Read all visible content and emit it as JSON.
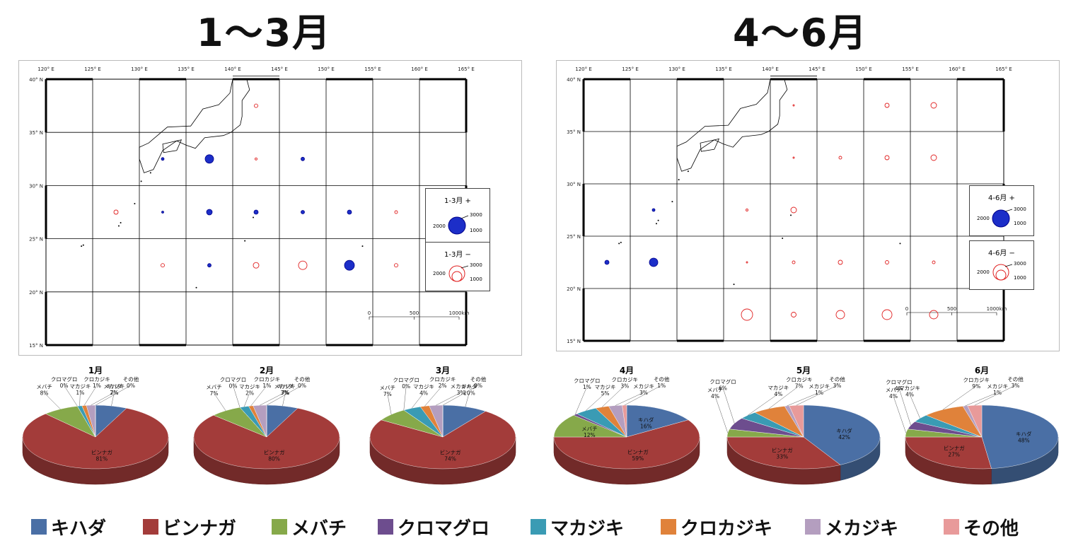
{
  "titles": {
    "left": "1～3月",
    "right": "4～6月"
  },
  "map": {
    "lon_ticks": [
      "120° E",
      "125° E",
      "130° E",
      "135° E",
      "140° E",
      "145° E",
      "150° E",
      "155° E",
      "160° E",
      "165° E"
    ],
    "lat_ticks": [
      "40° N",
      "35° N",
      "30° N",
      "25° N",
      "20° N",
      "15° N"
    ],
    "scale_ticks": [
      "0",
      "500",
      "1000km"
    ]
  },
  "map_left": {
    "legend_pos": {
      "title": "1-3月 +",
      "v_big": "3000",
      "v_mid": "2000",
      "v_small": "1000"
    },
    "legend_neg": {
      "title": "1-3月 −",
      "v_big": "3000",
      "v_mid": "2000",
      "v_small": "1000"
    }
  },
  "map_right": {
    "legend_pos": {
      "title": "4-6月 +",
      "v_big": "3000",
      "v_mid": "2000",
      "v_small": "1000"
    },
    "legend_neg": {
      "title": "4-6月 −",
      "v_big": "3000",
      "v_mid": "2000",
      "v_small": "1000"
    }
  },
  "colors": {
    "キハダ": "#4a6fa5",
    "ビンナガ": "#a33c3a",
    "メバチ": "#86a94a",
    "クロマグロ": "#6d4d8e",
    "マカジキ": "#3a9bb4",
    "クロカジキ": "#e0823a",
    "メカジキ": "#b49ebf",
    "その他": "#e89a9a"
  },
  "legend": {
    "items": [
      "キハダ",
      "ビンナガ",
      "メバチ",
      "クロマグロ",
      "マカジキ",
      "クロカジキ",
      "メカジキ",
      "その他"
    ]
  },
  "chart_data": [
    {
      "type": "pie",
      "title": "1月",
      "labels": [
        "キハダ",
        "ビンナガ",
        "メバチ",
        "クロマグロ",
        "マカジキ",
        "クロカジキ",
        "メカジキ",
        "その他"
      ],
      "values": [
        7,
        81,
        8,
        0,
        1,
        1,
        2,
        0
      ]
    },
    {
      "type": "pie",
      "title": "2月",
      "labels": [
        "キハダ",
        "ビンナガ",
        "メバチ",
        "クロマグロ",
        "マカジキ",
        "クロカジキ",
        "メカジキ",
        "その他"
      ],
      "values": [
        7,
        80,
        7,
        0,
        2,
        1,
        3,
        0
      ]
    },
    {
      "type": "pie",
      "title": "3月",
      "labels": [
        "キハダ",
        "ビンナガ",
        "メバチ",
        "クロマグロ",
        "マカジキ",
        "クロカジキ",
        "メカジキ",
        "その他"
      ],
      "values": [
        10,
        74,
        7,
        0,
        4,
        2,
        3,
        0
      ]
    },
    {
      "type": "pie",
      "title": "4月",
      "labels": [
        "キハダ",
        "ビンナガ",
        "メバチ",
        "クロマグロ",
        "マカジキ",
        "クロカジキ",
        "メカジキ",
        "その他"
      ],
      "values": [
        16,
        59,
        12,
        1,
        5,
        3,
        3,
        1
      ]
    },
    {
      "type": "pie",
      "title": "5月",
      "labels": [
        "キハダ",
        "ビンナガ",
        "メバチ",
        "クロマグロ",
        "マカジキ",
        "クロカジキ",
        "メカジキ",
        "その他"
      ],
      "values": [
        42,
        33,
        4,
        6,
        4,
        7,
        1,
        3
      ]
    },
    {
      "type": "pie",
      "title": "6月",
      "labels": [
        "キハダ",
        "ビンナガ",
        "メバチ",
        "クロマグロ",
        "マカジキ",
        "クロカジキ",
        "メカジキ",
        "その他"
      ],
      "values": [
        48,
        27,
        4,
        4,
        4,
        9,
        1,
        3
      ]
    }
  ]
}
